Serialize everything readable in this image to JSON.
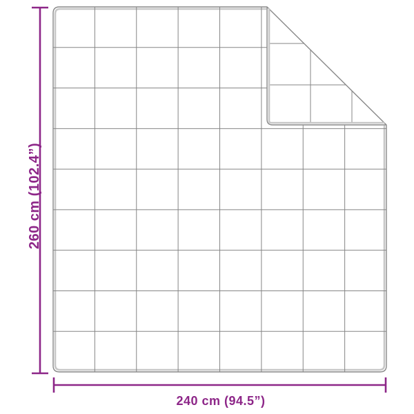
{
  "diagram": {
    "height_label": "260 cm (102.4”)",
    "width_label": "240 cm (94.5”)",
    "dimensions": {
      "height_cm": 260,
      "height_in": 102.4,
      "width_cm": 240,
      "width_in": 94.5
    },
    "grid": {
      "columns": 8,
      "rows": 9
    },
    "colors": {
      "accent": "#8D2688",
      "outline": "#898989",
      "hem": "#C7C7C7",
      "grid": "#858585",
      "background": "#FFFFFF"
    }
  }
}
